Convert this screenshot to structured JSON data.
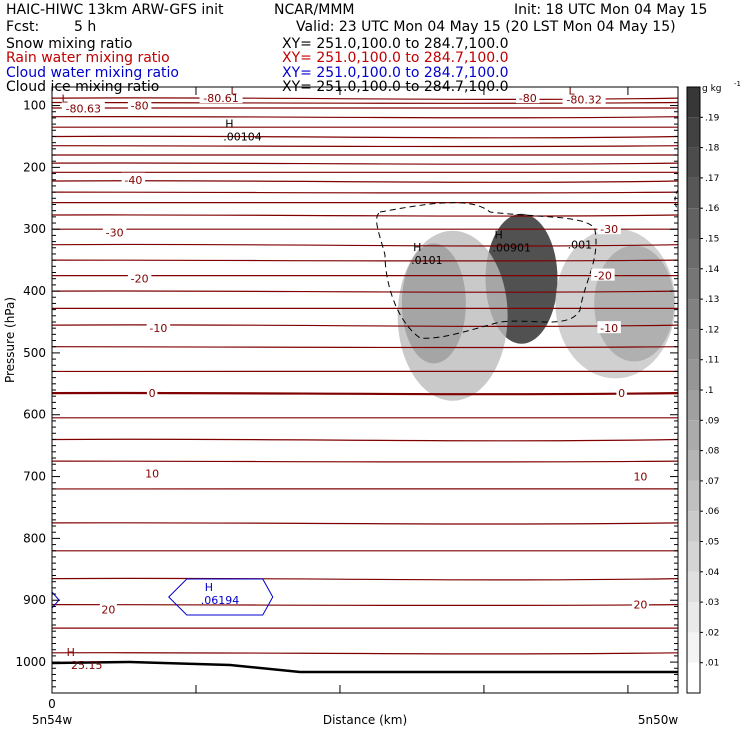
{
  "header": {
    "title": "HAIC-HIWC 13km ARW-GFS init",
    "org": "NCAR/MMM",
    "init": "Init: 18 UTC Mon 04 May 15",
    "fcst_label": "Fcst:",
    "fcst_value": "5 h",
    "valid": "Valid: 23 UTC Mon 04 May 15 (20 LST Mon 04 May 15)"
  },
  "fields": [
    {
      "name": "Snow mixing ratio",
      "xy": "XY= 251.0,100.0 to 284.7,100.0",
      "color": "#000000"
    },
    {
      "name": "Rain water mixing ratio",
      "xy": "XY= 251.0,100.0 to 284.7,100.0",
      "color": "#c00000"
    },
    {
      "name": "Cloud water mixing ratio",
      "xy": "XY= 251.0,100.0 to 284.7,100.0",
      "color": "#0000cc"
    },
    {
      "name": "Cloud ice mixing ratio",
      "xy": "XY= 251.0,100.0 to 284.7,100.0",
      "color": "#000000"
    }
  ],
  "chart_data": {
    "type": "heatmap",
    "xlabel": "Distance (km)",
    "ylabel": "Pressure (hPa)",
    "x_ticks": [
      "0"
    ],
    "x_endpoints": [
      "5n54w",
      "5n50w"
    ],
    "y_ticks": [
      "100",
      "200",
      "300",
      "400",
      "500",
      "600",
      "700",
      "800",
      "900",
      "1000"
    ],
    "ylim": [
      1050,
      70
    ],
    "colorbar": {
      "unit": "g kg",
      "unit_exp": "-1",
      "levels": [
        ".01",
        ".02",
        ".03",
        ".04",
        ".05",
        ".06",
        ".07",
        ".08",
        ".09",
        ".1",
        ".11",
        ".12",
        ".13",
        ".14",
        ".15",
        ".16",
        ".17",
        ".18",
        ".19"
      ]
    },
    "temperature_contours": {
      "color": "#800000",
      "label_marks": [
        {
          "text": "-80",
          "x_frac": 0.14,
          "p": 100
        },
        {
          "text": "-80.61",
          "x_frac": 0.27,
          "p": 88
        },
        {
          "text": "-80",
          "x_frac": 0.76,
          "p": 88
        },
        {
          "text": "-80.32",
          "x_frac": 0.85,
          "p": 90
        },
        {
          "text": "-80.63",
          "x_frac": 0.05,
          "p": 105
        },
        {
          "text": "-40",
          "x_frac": 0.13,
          "p": 220
        },
        {
          "text": "-30",
          "x_frac": 0.1,
          "p": 305
        },
        {
          "text": "-30",
          "x_frac": 0.89,
          "p": 300
        },
        {
          "text": "-20",
          "x_frac": 0.14,
          "p": 380
        },
        {
          "text": "-20",
          "x_frac": 0.88,
          "p": 375
        },
        {
          "text": "-10",
          "x_frac": 0.17,
          "p": 460
        },
        {
          "text": "-10",
          "x_frac": 0.89,
          "p": 460
        },
        {
          "text": "0",
          "x_frac": 0.16,
          "p": 565
        },
        {
          "text": "0",
          "x_frac": 0.91,
          "p": 565
        },
        {
          "text": "10",
          "x_frac": 0.16,
          "p": 695
        },
        {
          "text": "10",
          "x_frac": 0.94,
          "p": 700
        },
        {
          "text": "20",
          "x_frac": 0.09,
          "p": 915
        },
        {
          "text": "20",
          "x_frac": 0.94,
          "p": 907
        }
      ],
      "extrema": [
        {
          "kind": "L",
          "value": "",
          "x_frac": 0.02,
          "p": 95
        },
        {
          "kind": "L",
          "value": "",
          "x_frac": 0.29,
          "p": 82
        },
        {
          "kind": "L",
          "value": "",
          "x_frac": 0.83,
          "p": 82
        },
        {
          "kind": "H",
          "value": "25.15",
          "x_frac": 0.03,
          "p": 990
        }
      ]
    },
    "cloud_water_max": {
      "kind": "H",
      "value": ".06194",
      "x_frac": 0.26,
      "p": 885
    },
    "cloud_ice_max": {
      "kind": "H",
      "value": ".00104",
      "x_frac": 0.28,
      "p": 140
    },
    "snow_maxima": [
      {
        "kind": "H",
        "value": ".0101",
        "x_frac": 0.58,
        "p": 340
      },
      {
        "kind": "H",
        "value": ".00901",
        "x_frac": 0.71,
        "p": 320
      },
      {
        "kind": "",
        "value": ".001",
        "x_frac": 0.83,
        "p": 315
      }
    ]
  }
}
